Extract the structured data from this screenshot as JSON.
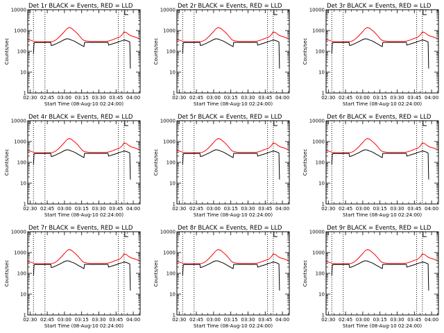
{
  "chart_data": [
    {
      "type": "line",
      "title": "Det 1r BLACK = Events, RED = LLD"
    },
    {
      "type": "line",
      "title": "Det 2r BLACK = Events, RED = LLD"
    },
    {
      "type": "line",
      "title": "Det 3r BLACK = Events, RED = LLD"
    },
    {
      "type": "line",
      "title": "Det 4r BLACK = Events, RED = LLD"
    },
    {
      "type": "line",
      "title": "Det 5r BLACK = Events, RED = LLD"
    },
    {
      "type": "line",
      "title": "Det 6r BLACK = Events, RED = LLD"
    },
    {
      "type": "line",
      "title": "Det 7r BLACK = Events, RED = LLD"
    },
    {
      "type": "line",
      "title": "Det 8r BLACK = Events, RED = LLD"
    },
    {
      "type": "line",
      "title": "Det 9r BLACK = Events, RED = LLD"
    }
  ],
  "shared": {
    "xlabel": "Start Time (08-Aug-10 02:24:00)",
    "ylabel": "Counts/sec",
    "yscale": "log",
    "ylim": [
      1,
      10000
    ],
    "yticks": [
      "1",
      "10",
      "100",
      "1000",
      "10000"
    ],
    "xlim": [
      148,
      246
    ],
    "xticks": [
      {
        "min": 150,
        "label": "02:30"
      },
      {
        "min": 165,
        "label": "02:45"
      },
      {
        "min": 180,
        "label": "03:00"
      },
      {
        "min": 195,
        "label": "03:15"
      },
      {
        "min": 210,
        "label": "03:30"
      },
      {
        "min": 225,
        "label": "03:45"
      },
      {
        "min": 240,
        "label": "04:00"
      }
    ],
    "vlines": [
      153,
      163,
      227,
      232
    ],
    "series": [
      {
        "name": "LLD",
        "color": "#ff0000",
        "x": [
          148,
          150,
          152,
          154,
          156,
          158,
          160,
          162,
          164,
          166,
          168,
          170,
          172,
          174,
          176,
          178,
          180,
          182,
          184,
          186,
          188,
          190,
          192,
          194,
          196,
          198,
          200,
          202,
          204,
          206,
          208,
          210,
          212,
          214,
          216,
          218,
          220,
          222,
          224,
          226,
          228,
          230,
          232,
          234,
          236,
          238,
          240,
          242,
          244,
          246
        ],
        "y": [
          370,
          350,
          320,
          300,
          290,
          290,
          290,
          290,
          290,
          290,
          290,
          300,
          340,
          410,
          520,
          680,
          900,
          1200,
          1400,
          1300,
          1050,
          850,
          650,
          480,
          360,
          320,
          310,
          300,
          300,
          300,
          300,
          300,
          300,
          300,
          300,
          310,
          330,
          360,
          400,
          440,
          480,
          600,
          850,
          800,
          650,
          560,
          520,
          480,
          430,
          380
        ]
      },
      {
        "name": "Events",
        "color": "#000000",
        "x": [
          153,
          153.5,
          155,
          157,
          159,
          161,
          163,
          165,
          167,
          168,
          168.5,
          170,
          172,
          174,
          176,
          178,
          180,
          182,
          184,
          186,
          188,
          190,
          192,
          194,
          196,
          197,
          197.5,
          199,
          201,
          203,
          205,
          207,
          209,
          211,
          213,
          215,
          217,
          218,
          218.5,
          220,
          222,
          224,
          226,
          228,
          230,
          232,
          234,
          236,
          237,
          237.5
        ],
        "y": [
          80,
          260,
          265,
          265,
          265,
          265,
          265,
          270,
          270,
          270,
          190,
          200,
          220,
          250,
          280,
          320,
          370,
          400,
          390,
          350,
          320,
          280,
          240,
          210,
          180,
          170,
          270,
          270,
          270,
          270,
          270,
          270,
          270,
          270,
          270,
          270,
          270,
          270,
          200,
          210,
          230,
          250,
          270,
          300,
          320,
          350,
          330,
          300,
          280,
          15
        ]
      }
    ]
  }
}
